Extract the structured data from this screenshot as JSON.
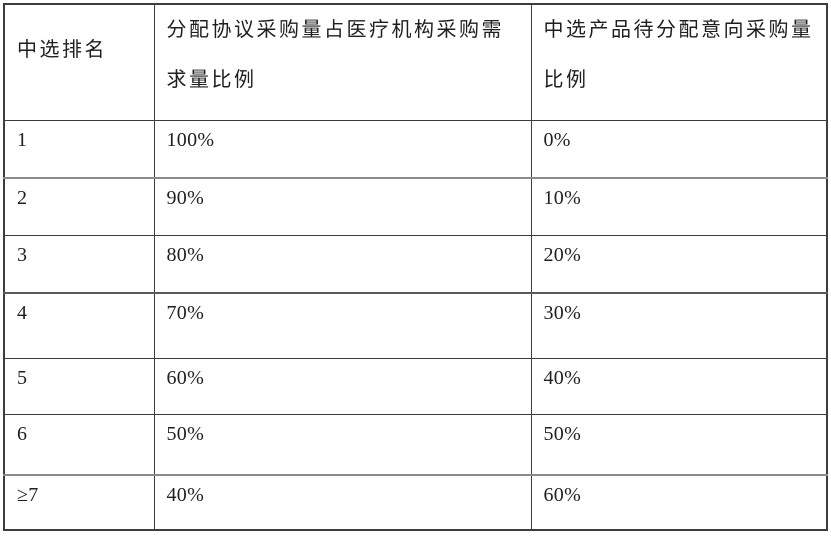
{
  "table": {
    "headers": {
      "rank": "中选排名",
      "allocation": "分配协议采购量占医疗机构采购需求量比例",
      "pending": "中选产品待分配意向采购量比例"
    },
    "rows": [
      {
        "rank": "1",
        "allocation": "100%",
        "pending": "0%"
      },
      {
        "rank": "2",
        "allocation": "90%",
        "pending": "10%"
      },
      {
        "rank": "3",
        "allocation": "80%",
        "pending": "20%"
      },
      {
        "rank": "4",
        "allocation": "70%",
        "pending": "30%"
      },
      {
        "rank": "5",
        "allocation": "60%",
        "pending": "40%"
      },
      {
        "rank": "6",
        "allocation": "50%",
        "pending": "50%"
      },
      {
        "rank": "≥7",
        "allocation": "40%",
        "pending": "60%"
      }
    ]
  }
}
